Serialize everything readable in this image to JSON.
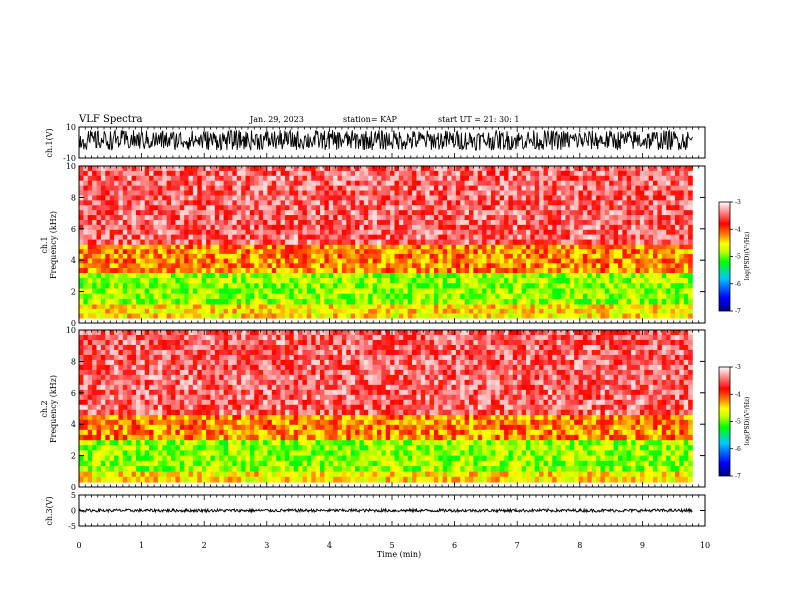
{
  "header": {
    "title": "VLF Spectra",
    "date": "Jan. 29, 2023",
    "station": "station= KAP",
    "start": "start  UT =  21: 30: 1"
  },
  "colors": {
    "waveform": "#000000",
    "colormap": [
      "#000080",
      "#0000ff",
      "#00c8ff",
      "#00ff00",
      "#c8ff00",
      "#ffff00",
      "#ff8000",
      "#ff0000",
      "#ffffff"
    ]
  },
  "chart_data": [
    {
      "panel": "ch1-waveform",
      "type": "line",
      "ylabel": "ch.1(V)",
      "ylim": [
        -10,
        10
      ],
      "y_tick_labels": [
        "10",
        "-10"
      ],
      "xlim": [
        0,
        10
      ],
      "series": [
        {
          "name": "ch.1",
          "baseline": 1,
          "amplitude_range": [
            -6,
            7
          ]
        }
      ]
    },
    {
      "panel": "ch1-spectrogram",
      "type": "heatmap",
      "ylabel": "ch.1\nFrequency (kHz)",
      "ylim": [
        0,
        10
      ],
      "y_tick_labels": [
        "0",
        "2",
        "4",
        "6",
        "8",
        "10"
      ],
      "xlim": [
        0,
        10
      ],
      "data_extent_min": 9.8,
      "colorbar": {
        "label": "log(PSD)(V²/Hz)",
        "range": [
          -7,
          -3
        ],
        "tick_labels": [
          "-3",
          "-4",
          "-5",
          "-6",
          "-7"
        ]
      },
      "bands": [
        {
          "freq_khz": [
            0.3,
            1.2
          ],
          "level": -4.5
        },
        {
          "freq_khz": [
            1.2,
            3.2
          ],
          "level": -4.9
        },
        {
          "freq_khz": [
            3.2,
            5.0
          ],
          "level": -4.2
        },
        {
          "freq_khz": [
            5.0,
            10.0
          ],
          "level": -3.5
        }
      ]
    },
    {
      "panel": "ch2-spectrogram",
      "type": "heatmap",
      "ylabel": "ch.2\nFrequency (kHz)",
      "ylim": [
        0,
        10
      ],
      "y_tick_labels": [
        "0",
        "2",
        "4",
        "6",
        "8",
        "10"
      ],
      "xlim": [
        0,
        10
      ],
      "data_extent_min": 9.8,
      "colorbar": {
        "label": "log(PSD)(V²/Hz)",
        "range": [
          -7,
          -3
        ],
        "tick_labels": [
          "-3",
          "-4",
          "-5",
          "-6",
          "-7"
        ]
      },
      "bands": [
        {
          "freq_khz": [
            0.3,
            1.0
          ],
          "level": -4.5
        },
        {
          "freq_khz": [
            1.0,
            3.0
          ],
          "level": -4.9
        },
        {
          "freq_khz": [
            3.0,
            4.6
          ],
          "level": -4.2
        },
        {
          "freq_khz": [
            4.6,
            10.0
          ],
          "level": -3.5
        }
      ]
    },
    {
      "panel": "ch3-waveform",
      "type": "line",
      "ylabel": "ch.3(V)",
      "ylim": [
        -5,
        5
      ],
      "y_tick_labels": [
        "5",
        "0",
        "-5"
      ],
      "xlim": [
        0,
        10
      ],
      "series": [
        {
          "name": "ch.3",
          "baseline": 0,
          "amplitude_range": [
            -0.5,
            0.5
          ]
        }
      ]
    }
  ],
  "x_axis": {
    "label": "Time (min)",
    "range": [
      0,
      10
    ],
    "tick_labels": [
      "0",
      "1",
      "2",
      "3",
      "4",
      "5",
      "6",
      "7",
      "8",
      "9",
      "10"
    ]
  }
}
